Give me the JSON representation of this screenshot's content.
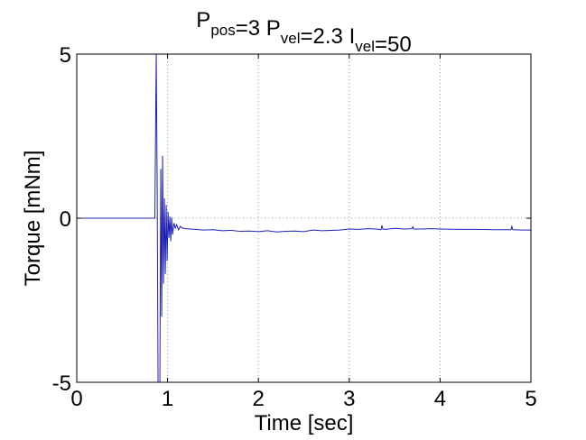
{
  "chart_data": {
    "type": "line",
    "title": {
      "parts": [
        {
          "text": "P",
          "sub": "pos"
        },
        {
          "text": "=3 P",
          "sub": "vel"
        },
        {
          "text": "=2.3 I",
          "sub": "vel"
        },
        {
          "text": "=50",
          "sub": ""
        }
      ]
    },
    "xlabel": "Time [sec]",
    "ylabel": "Torque [mNm]",
    "xlim": [
      0,
      5
    ],
    "ylim": [
      -5,
      5
    ],
    "xticks": [
      0,
      1,
      2,
      3,
      4,
      5
    ],
    "yticks": [
      -5,
      0,
      5
    ],
    "xtick_labels": [
      "0",
      "1",
      "2",
      "3",
      "4",
      "5"
    ],
    "ytick_labels": [
      "-5",
      "0",
      "5"
    ],
    "grid": true,
    "line_color": "#1f1fb4",
    "series": [
      {
        "name": "torque",
        "x": [
          0.0,
          0.86,
          0.875,
          0.885,
          0.895,
          0.905,
          0.915,
          0.925,
          0.935,
          0.945,
          0.955,
          0.965,
          0.975,
          0.985,
          0.995,
          1.005,
          1.015,
          1.025,
          1.035,
          1.045,
          1.055,
          1.07,
          1.085,
          1.1,
          1.12,
          1.14,
          1.16,
          1.2,
          1.3,
          1.4,
          1.5,
          1.6,
          1.7,
          1.8,
          1.9,
          2.0,
          2.1,
          2.2,
          2.3,
          2.4,
          2.5,
          2.6,
          2.7,
          2.8,
          2.9,
          3.0,
          3.1,
          3.2,
          3.3,
          3.35,
          3.36,
          3.37,
          3.4,
          3.5,
          3.6,
          3.69,
          3.7,
          3.71,
          3.8,
          3.9,
          4.0,
          4.2,
          4.4,
          4.6,
          4.78,
          4.79,
          4.8,
          4.9,
          5.0
        ],
        "y": [
          0.0,
          0.0,
          5.0,
          1.2,
          -5.0,
          -5.0,
          -5.0,
          1.5,
          -3.0,
          1.9,
          -2.0,
          0.6,
          -1.7,
          0.4,
          -1.3,
          0.2,
          -0.6,
          0.05,
          -0.7,
          0.02,
          -0.5,
          -0.15,
          -0.3,
          -0.2,
          -0.35,
          -0.25,
          -0.3,
          -0.32,
          -0.34,
          -0.36,
          -0.35,
          -0.38,
          -0.37,
          -0.4,
          -0.39,
          -0.41,
          -0.38,
          -0.42,
          -0.4,
          -0.39,
          -0.41,
          -0.36,
          -0.38,
          -0.37,
          -0.36,
          -0.33,
          -0.34,
          -0.32,
          -0.33,
          -0.35,
          -0.22,
          -0.33,
          -0.34,
          -0.31,
          -0.33,
          -0.32,
          -0.26,
          -0.33,
          -0.33,
          -0.32,
          -0.33,
          -0.34,
          -0.34,
          -0.35,
          -0.35,
          -0.25,
          -0.35,
          -0.36,
          -0.36
        ]
      }
    ]
  }
}
